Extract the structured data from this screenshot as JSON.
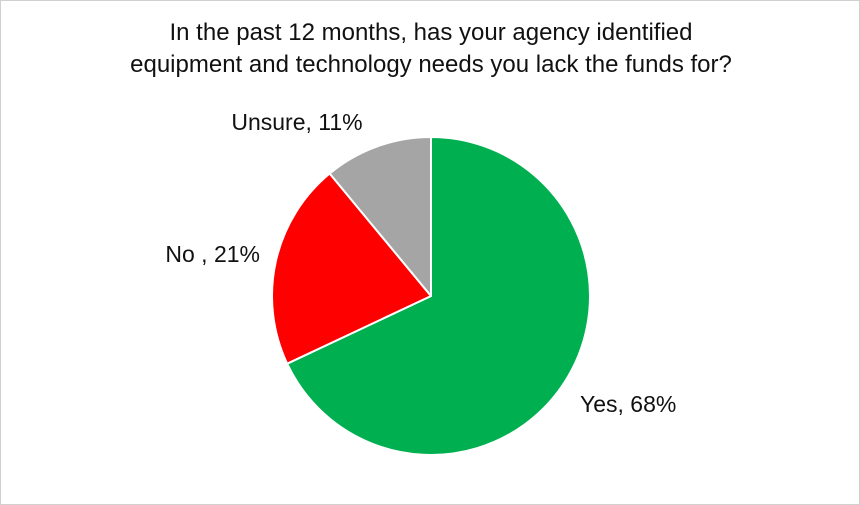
{
  "chart_data": {
    "type": "pie",
    "title_lines": [
      "In the past 12 months, has your agency identified",
      "equipment and technology needs you lack the funds for?"
    ],
    "slices": [
      {
        "name": "Yes",
        "value": 68,
        "label": "Yes, 68%",
        "color": "#00b050"
      },
      {
        "name": "No",
        "value": 21,
        "label": "No , 21%",
        "color": "#ff0000"
      },
      {
        "name": "Unsure",
        "value": 11,
        "label": "Unsure, 11%",
        "color": "#a5a5a5"
      }
    ],
    "start": "12 o'clock",
    "direction": "clockwise",
    "legend": "none"
  }
}
